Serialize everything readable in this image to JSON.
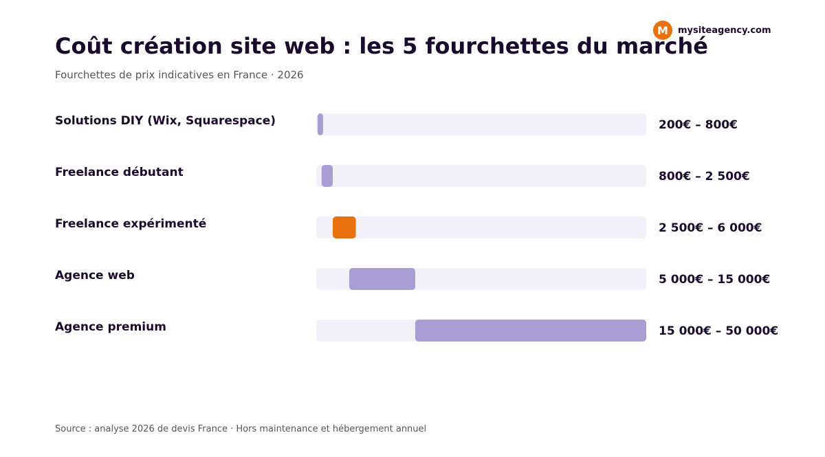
{
  "brand": {
    "badge_letter": "M",
    "name": "mysiteagency.com",
    "color": "#e8710d"
  },
  "title": "Coût création site web : les 5 fourchettes du marché",
  "subtitle": "Fourchettes de prix indicatives en France · 2026",
  "source": "Source : analyse 2026 de devis France · Hors maintenance et hébergement annuel",
  "colors": {
    "bar": "#a99dd3",
    "highlight": "#e8710d",
    "track": "#f2f0f8",
    "text": "#1a0a2e"
  },
  "chart_data": {
    "type": "bar",
    "orientation": "horizontal",
    "style": "range",
    "xlim": [
      0,
      50000
    ],
    "unit": "€",
    "categories": [
      "Solutions DIY (Wix, Squarespace)",
      "Freelance débutant",
      "Freelance expérimenté",
      "Agence web",
      "Agence premium"
    ],
    "ranges": [
      {
        "min": 200,
        "max": 800,
        "label": "200€ – 800€",
        "highlight": false
      },
      {
        "min": 800,
        "max": 2500,
        "label": "800€ – 2 500€",
        "highlight": false
      },
      {
        "min": 2500,
        "max": 6000,
        "label": "2 500€ – 6 000€",
        "highlight": true
      },
      {
        "min": 5000,
        "max": 15000,
        "label": "5 000€ – 15 000€",
        "highlight": false
      },
      {
        "min": 15000,
        "max": 50000,
        "label": "15 000€ – 50 000€",
        "highlight": false
      }
    ],
    "grid": false,
    "legend": "none"
  }
}
